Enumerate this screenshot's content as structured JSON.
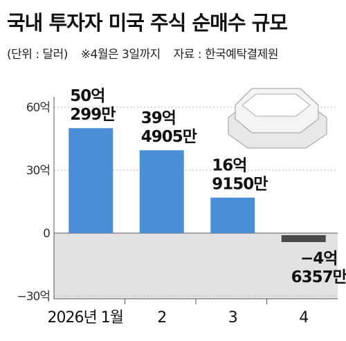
{
  "title": "국내 투자자 미국 주식 순매수 규모",
  "unit_note": "(단위 : 달러)",
  "period_note": "※4월은 3일까지",
  "source_note": "자료 : 한국예탁결제원",
  "chart_data": {
    "type": "bar",
    "categories": [
      "2026년 1월",
      "2",
      "3",
      "4"
    ],
    "values": [
      50.03,
      39.49,
      16.92,
      -4.64
    ],
    "data_labels": [
      [
        "50억",
        "299만"
      ],
      [
        "39억",
        "4905만"
      ],
      [
        "16억",
        "9150만"
      ],
      [
        "−4억",
        "6357만"
      ]
    ],
    "ylim": [
      -30,
      60
    ],
    "yticks": [
      60,
      30,
      0,
      -30
    ],
    "ytick_labels": [
      "60억",
      "30억",
      "0",
      "−30억"
    ],
    "colors": {
      "positive": "#4a8fd6",
      "negative": "#4a4a4a",
      "negative_area": "#e2e2e2"
    },
    "grid": true
  }
}
